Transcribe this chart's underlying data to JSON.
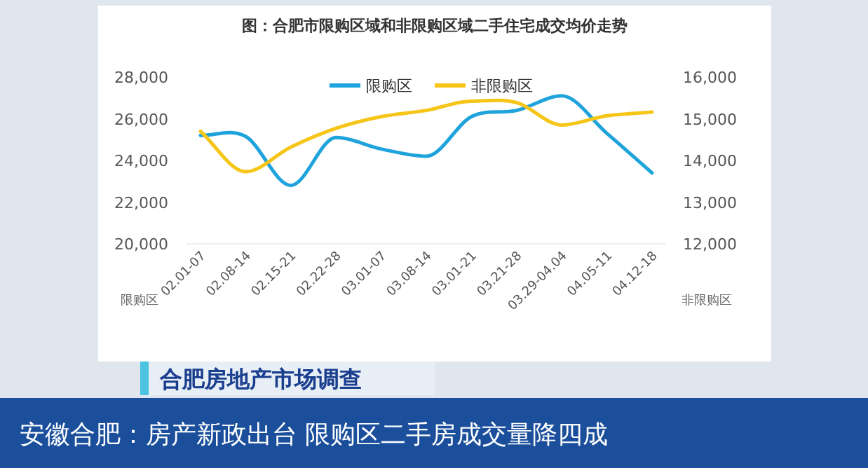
{
  "chart_data": {
    "type": "line",
    "title": "图：合肥市限购区域和非限购区域二手住宅成交均价走势",
    "ylabel": "限购区",
    "y2label": "非限购区",
    "categories": [
      "02.01-07",
      "02.08-14",
      "02.15-21",
      "02.22-28",
      "03.01-07",
      "03.08-14",
      "03.01-21",
      "03.21-28",
      "03.29-04.04",
      "04.05-11",
      "04.12-18"
    ],
    "series": [
      {
        "name": "限购区",
        "color": "#1fa3dc",
        "values": [
          25200,
          25150,
          22800,
          25100,
          24550,
          24200,
          26100,
          26400,
          27100,
          25300,
          23400
        ]
      },
      {
        "name": "非限购区",
        "color": "#f5c518",
        "axis": "y2",
        "values": [
          14700,
          13730,
          14320,
          14770,
          15050,
          15200,
          15420,
          15390,
          14850,
          15070,
          15160
        ]
      }
    ],
    "ylim": [
      20000,
      28000
    ],
    "yticks": [
      {
        "value": 20000,
        "label": "20,000"
      },
      {
        "value": 22000,
        "label": "22,000"
      },
      {
        "value": 24000,
        "label": "24,000"
      },
      {
        "value": 26000,
        "label": "26,000"
      },
      {
        "value": 28000,
        "label": "28,000"
      }
    ],
    "y2lim": [
      12000,
      16000
    ],
    "y2ticks": [
      {
        "value": 12000,
        "label": "12,000"
      },
      {
        "value": 13000,
        "label": "13,000"
      },
      {
        "value": 14000,
        "label": "14,000"
      },
      {
        "value": 15000,
        "label": "15,000"
      },
      {
        "value": 16000,
        "label": "16,000"
      }
    ],
    "legend": "top",
    "marker": "none",
    "line_style": "solid",
    "grid": false,
    "annotations": [
      "合肥房地产市场调查",
      "安徽合肥：房产新政出台 限购区二手房成交量降四成"
    ]
  }
}
